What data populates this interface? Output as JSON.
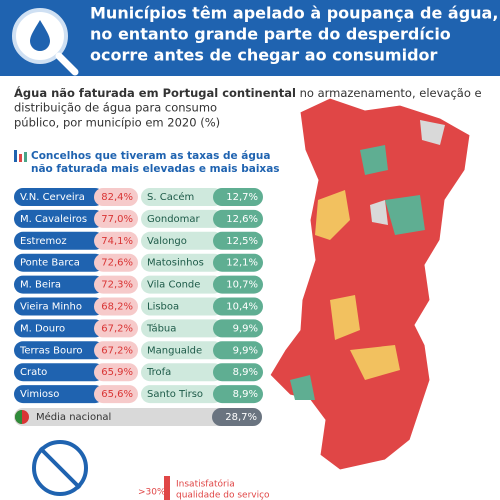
{
  "header": {
    "title": [
      "Municípios têm apelado à poupança de água,",
      "no entanto grande parte do desperdício",
      "ocorre antes de chegar ao consumidor"
    ]
  },
  "subtitle": {
    "bold": "Água não faturada em Portugal continental",
    "rest": [
      " no armazenamento, elevação e",
      "distribuição de água para consumo",
      "público, por município em 2020 (%)"
    ]
  },
  "list_title": [
    "Concelhos que tiveram as taxas de água",
    "não faturada mais elevadas e mais baixas"
  ],
  "highest": [
    [
      "V.N. Cerveira",
      "82,4%"
    ],
    [
      "M. Cavaleiros",
      "77,0%"
    ],
    [
      "Estremoz",
      "74,1%"
    ],
    [
      "Ponte Barca",
      "72,6%"
    ],
    [
      "M. Beira",
      "72,3%"
    ],
    [
      "Vieira Minho",
      "68,2%"
    ],
    [
      "M. Douro",
      "67,2%"
    ],
    [
      "Terras Bouro",
      "67,2%"
    ],
    [
      "Crato",
      "65,9%"
    ],
    [
      "Vimioso",
      "65,6%"
    ]
  ],
  "lowest": [
    [
      "S. Cacém",
      "12,7%"
    ],
    [
      "Gondomar",
      "12,6%"
    ],
    [
      "Valongo",
      "12,5%"
    ],
    [
      "Matosinhos",
      "12,1%"
    ],
    [
      "Vila Conde",
      "10,7%"
    ],
    [
      "Lisboa",
      "10,4%"
    ],
    [
      "Tábua",
      "9,9%"
    ],
    [
      "Mangualde",
      "9,9%"
    ],
    [
      "Trofa",
      "8,9%"
    ],
    [
      "Santo Tirso",
      "8,9%"
    ]
  ],
  "national": [
    "Média nacional",
    "28,7%"
  ],
  "legend": {
    "range": ">30%",
    "label": [
      "Insatisfatória",
      "qualidade do serviço"
    ]
  }
}
